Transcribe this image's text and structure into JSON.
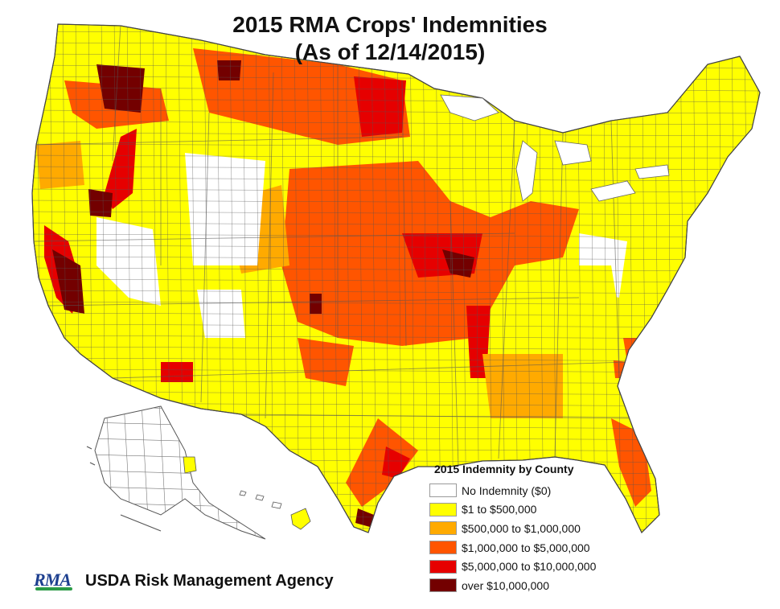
{
  "title": {
    "line1": "2015 RMA Crops' Indemnities",
    "line2": "(As of 12/14/2015)"
  },
  "legend": {
    "title": "2015 Indemnity by County",
    "items": [
      {
        "label": "No Indemnity ($0)",
        "color": "#ffffff"
      },
      {
        "label": "$1 to $500,000",
        "color": "#ffff00"
      },
      {
        "label": "$500,000 to $1,000,000",
        "color": "#ffaa00"
      },
      {
        "label": "$1,000,000 to $5,000,000",
        "color": "#ff5500"
      },
      {
        "label": "$5,000,000 to $10,000,000",
        "color": "#e60000"
      },
      {
        "label": "over $10,000,000",
        "color": "#730000"
      }
    ]
  },
  "agency": {
    "logo_text": "RMA",
    "name": "USDA Risk Management Agency"
  },
  "colors": {
    "border": "#555555",
    "logo_blue": "#1d3f8f",
    "logo_green": "#2b9b46"
  }
}
